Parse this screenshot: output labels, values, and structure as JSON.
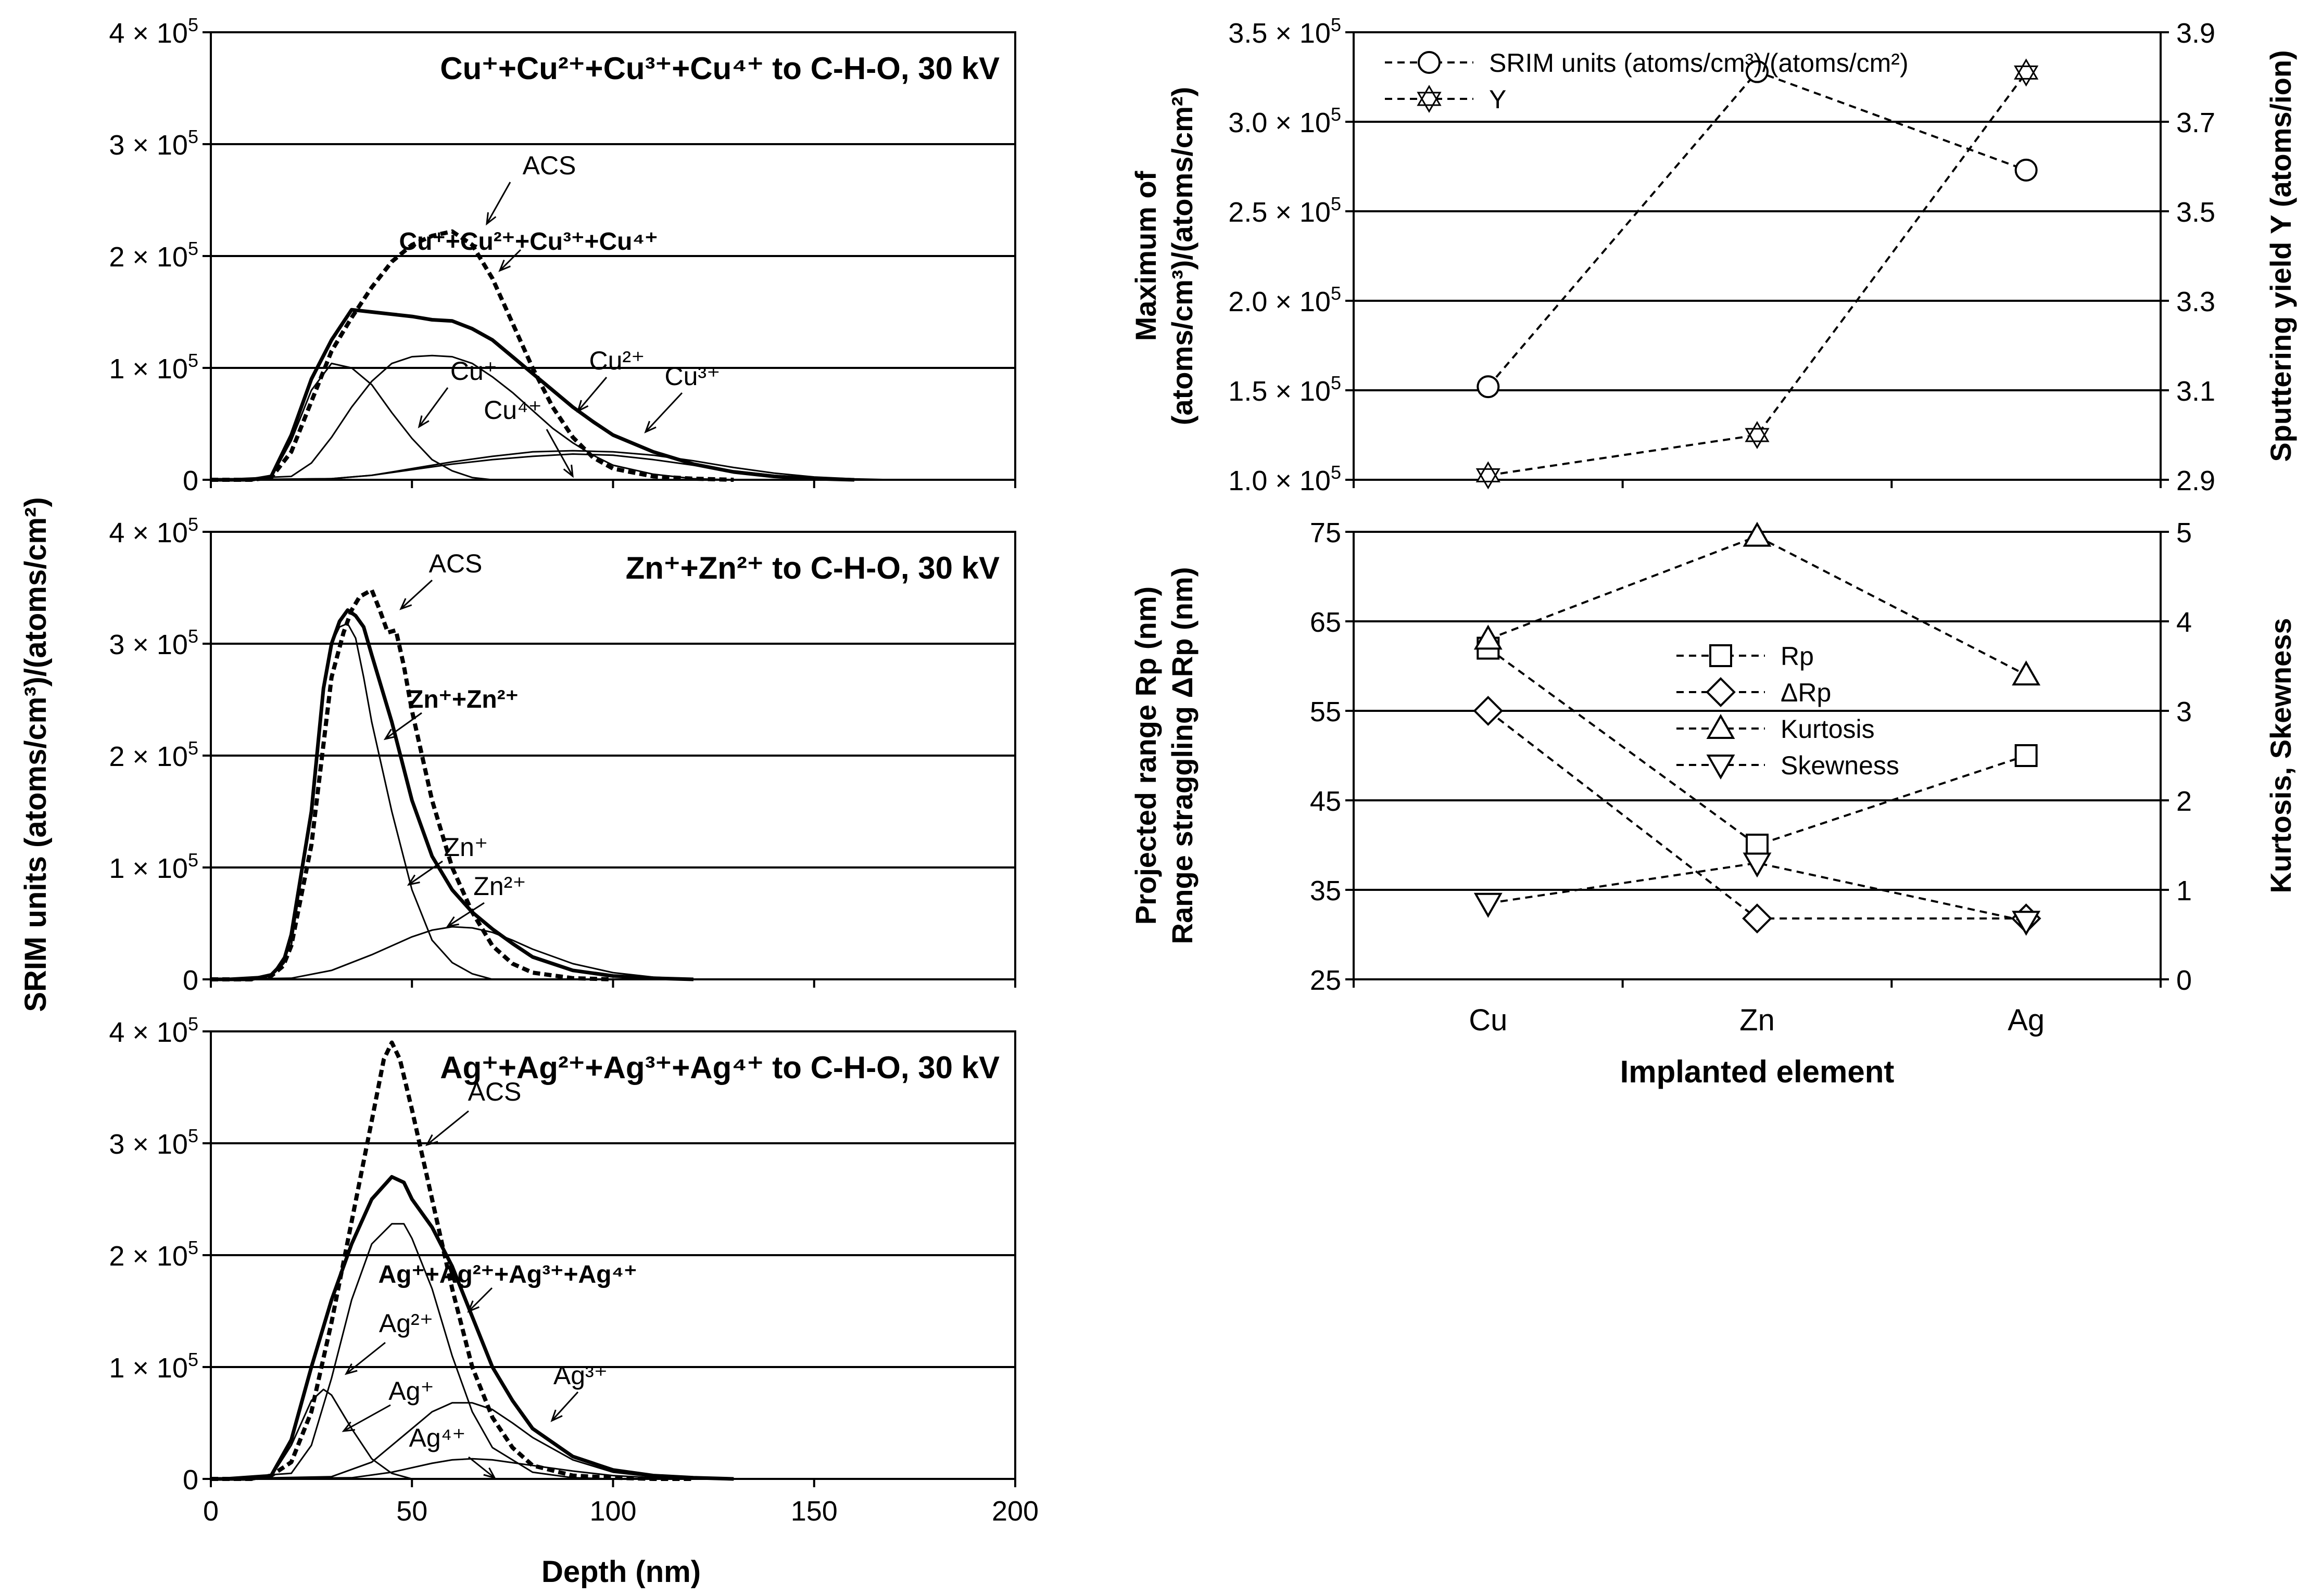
{
  "colors": {
    "ink": "#000000",
    "background": "#ffffff"
  },
  "shared": {
    "left_ylabel": "SRIM units (atoms/cm³)/(atoms/cm²)",
    "depth_xlabel": "Depth (nm)",
    "exponent_base": "× 10",
    "exponent": "5"
  },
  "chart_data": [
    {
      "id": "cu",
      "type": "line",
      "title": "Cu⁺+Cu²⁺+Cu³⁺+Cu⁴⁺ to C-H-O, 30 kV",
      "xlabel": "Depth (nm)",
      "ylabel": "SRIM units (atoms/cm³)/(atoms/cm²)",
      "xlim": [
        0,
        200
      ],
      "ylim": [
        0,
        400000
      ],
      "yticks": [
        0,
        100000,
        200000,
        300000,
        400000
      ],
      "ytick_labels": [
        "0",
        "1 × 10⁵",
        "2 × 10⁵",
        "3 × 10⁵",
        "4 × 10⁵"
      ],
      "grid": true,
      "series": [
        {
          "name": "ACS",
          "style": "dotted-bold",
          "x": [
            0,
            10,
            15,
            20,
            25,
            30,
            35,
            40,
            45,
            50,
            55,
            60,
            65,
            70,
            75,
            80,
            85,
            90,
            95,
            100,
            110,
            120,
            130
          ],
          "y": [
            0,
            0,
            2000,
            25000,
            70000,
            115000,
            145000,
            172000,
            195000,
            210000,
            218000,
            222000,
            210000,
            180000,
            140000,
            100000,
            65000,
            38000,
            20000,
            10000,
            3000,
            1000,
            0
          ]
        },
        {
          "name": "Cu⁺+Cu²⁺+Cu³⁺+Cu⁴⁺",
          "style": "bold",
          "x": [
            0,
            10,
            15,
            20,
            25,
            30,
            35,
            40,
            45,
            50,
            55,
            60,
            65,
            70,
            75,
            80,
            85,
            90,
            95,
            100,
            110,
            120,
            130,
            140,
            150,
            160
          ],
          "y": [
            0,
            0,
            3000,
            40000,
            90000,
            125000,
            152000,
            150000,
            148000,
            146000,
            143000,
            142000,
            135000,
            125000,
            110000,
            95000,
            80000,
            65000,
            52000,
            40000,
            25000,
            14000,
            7000,
            3000,
            1000,
            0
          ]
        },
        {
          "name": "Cu⁺",
          "style": "thin",
          "x": [
            0,
            15,
            20,
            25,
            30,
            35,
            40,
            45,
            50,
            55,
            60,
            65,
            70
          ],
          "y": [
            0,
            2000,
            35000,
            80000,
            104000,
            100000,
            85000,
            60000,
            37000,
            18000,
            8000,
            2000,
            0
          ]
        },
        {
          "name": "Cu²⁺",
          "style": "thin",
          "x": [
            0,
            20,
            25,
            30,
            35,
            40,
            45,
            50,
            55,
            60,
            65,
            70,
            75,
            80,
            85,
            90,
            95,
            100,
            110,
            120,
            130
          ],
          "y": [
            0,
            3000,
            15000,
            38000,
            65000,
            88000,
            104000,
            110000,
            111000,
            110000,
            104000,
            92000,
            78000,
            62000,
            46000,
            33000,
            22000,
            13000,
            5000,
            1000,
            0
          ]
        },
        {
          "name": "Cu³⁺",
          "style": "thin",
          "x": [
            0,
            30,
            40,
            50,
            60,
            70,
            80,
            90,
            100,
            110,
            120,
            130,
            140,
            150,
            160
          ],
          "y": [
            0,
            1000,
            4000,
            9000,
            14000,
            18000,
            21000,
            23000,
            22000,
            18000,
            13000,
            8000,
            4000,
            1500,
            0
          ]
        },
        {
          "name": "Cu⁴⁺",
          "style": "thin",
          "x": [
            0,
            30,
            40,
            50,
            60,
            70,
            80,
            90,
            100,
            110,
            120,
            130,
            140,
            150,
            160,
            170
          ],
          "y": [
            0,
            1000,
            4000,
            10000,
            16000,
            21000,
            25000,
            26000,
            25000,
            22000,
            17000,
            11000,
            6000,
            2500,
            800,
            0
          ]
        }
      ],
      "annotations": [
        "ACS",
        "Cu⁺+Cu²⁺+Cu³⁺+Cu⁴⁺",
        "Cu⁺",
        "Cu²⁺",
        "Cu³⁺",
        "Cu⁴⁺"
      ]
    },
    {
      "id": "zn",
      "type": "line",
      "title": "Zn⁺+Zn²⁺ to C-H-O, 30 kV",
      "xlabel": "Depth (nm)",
      "ylabel": "SRIM units (atoms/cm³)/(atoms/cm²)",
      "xlim": [
        0,
        200
      ],
      "ylim": [
        0,
        400000
      ],
      "yticks": [
        0,
        100000,
        200000,
        300000,
        400000
      ],
      "ytick_labels": [
        "0",
        "1 × 10⁵",
        "2 × 10⁵",
        "3 × 10⁵",
        "4 × 10⁵"
      ],
      "grid": true,
      "series": [
        {
          "name": "ACS",
          "style": "dotted-bold",
          "x": [
            0,
            10,
            15,
            18,
            20,
            25,
            28,
            30,
            33,
            35,
            37,
            40,
            42,
            44,
            46,
            48,
            50,
            55,
            60,
            65,
            70,
            75,
            80,
            90,
            100
          ],
          "y": [
            0,
            0,
            3000,
            12000,
            30000,
            120000,
            210000,
            270000,
            310000,
            330000,
            342000,
            348000,
            330000,
            310000,
            312000,
            280000,
            240000,
            160000,
            100000,
            60000,
            30000,
            14000,
            6000,
            1000,
            0
          ]
        },
        {
          "name": "Zn⁺+Zn²⁺",
          "style": "bold",
          "x": [
            0,
            10,
            15,
            18,
            20,
            25,
            28,
            30,
            32,
            34,
            36,
            38,
            40,
            45,
            50,
            55,
            60,
            65,
            70,
            75,
            80,
            90,
            100,
            110,
            120
          ],
          "y": [
            0,
            0,
            4000,
            15000,
            40000,
            150000,
            260000,
            300000,
            320000,
            330000,
            325000,
            315000,
            290000,
            230000,
            160000,
            110000,
            80000,
            60000,
            45000,
            32000,
            20000,
            8000,
            3000,
            1000,
            0
          ]
        },
        {
          "name": "Zn⁺",
          "style": "thin",
          "x": [
            0,
            15,
            20,
            25,
            28,
            30,
            32,
            34,
            36,
            38,
            40,
            45,
            50,
            55,
            60,
            65,
            70
          ],
          "y": [
            0,
            3000,
            30000,
            150000,
            260000,
            300000,
            315000,
            318000,
            305000,
            270000,
            230000,
            150000,
            80000,
            35000,
            15000,
            5000,
            0
          ]
        },
        {
          "name": "Zn²⁺",
          "style": "thin",
          "x": [
            0,
            20,
            30,
            40,
            50,
            55,
            60,
            65,
            70,
            75,
            80,
            90,
            100,
            110,
            120
          ],
          "y": [
            0,
            1000,
            8000,
            22000,
            38000,
            44000,
            47000,
            46000,
            42000,
            35000,
            27000,
            14000,
            6000,
            2000,
            0
          ]
        }
      ],
      "annotations": [
        "ACS",
        "Zn⁺+Zn²⁺",
        "Zn⁺",
        "Zn²⁺"
      ]
    },
    {
      "id": "ag",
      "type": "line",
      "title": "Ag⁺+Ag²⁺+Ag³⁺+Ag⁴⁺ to C-H-O, 30 kV",
      "xlabel": "Depth (nm)",
      "ylabel": "SRIM units (atoms/cm³)/(atoms/cm²)",
      "xlim": [
        0,
        200
      ],
      "ylim": [
        0,
        400000
      ],
      "yticks": [
        0,
        100000,
        200000,
        300000,
        400000
      ],
      "ytick_labels": [
        "0",
        "1 × 10⁵",
        "2 × 10⁵",
        "3 × 10⁵",
        "4 × 10⁵"
      ],
      "xticks": [
        0,
        50,
        100,
        150,
        200
      ],
      "grid": true,
      "series": [
        {
          "name": "ACS",
          "style": "dotted-bold",
          "x": [
            0,
            10,
            15,
            20,
            25,
            30,
            35,
            40,
            43,
            45,
            47,
            50,
            55,
            60,
            65,
            70,
            75,
            80,
            90,
            100,
            110,
            120
          ],
          "y": [
            0,
            0,
            3000,
            15000,
            60000,
            140000,
            230000,
            320000,
            375000,
            390000,
            375000,
            330000,
            250000,
            170000,
            100000,
            55000,
            28000,
            12000,
            3000,
            1000,
            0,
            0
          ]
        },
        {
          "name": "Ag⁺+Ag²⁺+Ag³⁺+Ag⁴⁺",
          "style": "bold",
          "x": [
            0,
            10,
            15,
            20,
            25,
            30,
            35,
            40,
            45,
            48,
            50,
            55,
            60,
            65,
            70,
            75,
            80,
            90,
            100,
            110,
            120,
            130
          ],
          "y": [
            0,
            0,
            3000,
            35000,
            100000,
            160000,
            210000,
            250000,
            270000,
            265000,
            250000,
            225000,
            190000,
            145000,
            100000,
            70000,
            45000,
            20000,
            8000,
            3000,
            1000,
            0
          ]
        },
        {
          "name": "Ag⁺",
          "style": "thin",
          "x": [
            0,
            15,
            20,
            25,
            28,
            30,
            35,
            40,
            45,
            50
          ],
          "y": [
            0,
            2000,
            30000,
            70000,
            80000,
            75000,
            45000,
            18000,
            5000,
            0
          ]
        },
        {
          "name": "Ag²⁺",
          "style": "thin",
          "x": [
            0,
            20,
            25,
            30,
            35,
            40,
            45,
            48,
            50,
            55,
            60,
            65,
            70,
            80,
            90,
            100
          ],
          "y": [
            0,
            5000,
            30000,
            90000,
            160000,
            210000,
            228000,
            228000,
            215000,
            170000,
            110000,
            60000,
            28000,
            6000,
            1000,
            0
          ]
        },
        {
          "name": "Ag³⁺",
          "style": "thin",
          "x": [
            0,
            30,
            40,
            50,
            55,
            60,
            65,
            70,
            75,
            80,
            90,
            100,
            110,
            120
          ],
          "y": [
            0,
            2000,
            15000,
            45000,
            60000,
            68000,
            68000,
            62000,
            50000,
            37000,
            17000,
            6000,
            2000,
            0
          ]
        },
        {
          "name": "Ag⁴⁺",
          "style": "thin",
          "x": [
            0,
            35,
            45,
            55,
            60,
            65,
            70,
            80,
            90,
            100,
            110,
            120
          ],
          "y": [
            0,
            1000,
            6000,
            14000,
            17000,
            18000,
            17000,
            12000,
            7000,
            3000,
            1000,
            0
          ]
        }
      ],
      "annotations": [
        "ACS",
        "Ag⁺+Ag²⁺+Ag³⁺+Ag⁴⁺",
        "Ag²⁺",
        "Ag⁺",
        "Ag⁴⁺",
        "Ag³⁺"
      ]
    },
    {
      "id": "max_sputter",
      "type": "line",
      "categories": [
        "Cu",
        "Zn",
        "Ag"
      ],
      "ylabel_left": [
        "Maximum of",
        "(atoms/cm³)/(atoms/cm²)"
      ],
      "ylabel_right": "Sputtering yield Y (atoms/ion)",
      "ylim_left": [
        100000,
        350000
      ],
      "yticks_left": [
        100000,
        150000,
        200000,
        250000,
        300000,
        350000
      ],
      "ytick_labels_left": [
        "1.0 × 10⁵",
        "1.5 × 10⁵",
        "2.0 × 10⁵",
        "2.5 × 10⁵",
        "3.0 × 10⁵",
        "3.5 × 10⁵"
      ],
      "ylim_right": [
        2.9,
        3.9
      ],
      "ytick_labels_right": [
        "2.9",
        "3.1",
        "3.3",
        "3.5",
        "3.7",
        "3.9"
      ],
      "grid": true,
      "series": [
        {
          "name": "SRIM units (atoms/cm³)/(atoms/cm²)",
          "axis": "left",
          "marker": "circle",
          "values": [
            152000,
            328000,
            273000
          ]
        },
        {
          "name": "Y",
          "axis": "right",
          "marker": "star",
          "values": [
            2.91,
            3.0,
            3.81
          ]
        }
      ]
    },
    {
      "id": "range_moments",
      "type": "line",
      "categories": [
        "Cu",
        "Zn",
        "Ag"
      ],
      "xlabel": "Implanted element",
      "ylabel_left": [
        "Projected range Rp (nm)",
        "Range straggling ΔRp (nm)"
      ],
      "ylabel_right": "Kurtosis, Skewness",
      "ylim_left": [
        25,
        75
      ],
      "ytick_labels_left": [
        "25",
        "35",
        "45",
        "55",
        "65",
        "75"
      ],
      "ylim_right": [
        0,
        5
      ],
      "ytick_labels_right": [
        "0",
        "1",
        "2",
        "3",
        "4",
        "5"
      ],
      "grid": true,
      "series": [
        {
          "name": "Rp",
          "axis": "left",
          "marker": "square",
          "values": [
            62,
            40,
            50
          ]
        },
        {
          "name": "ΔRp",
          "axis": "left",
          "marker": "diamond",
          "values": [
            55,
            31.8,
            31.8
          ]
        },
        {
          "name": "Kurtosis",
          "axis": "right",
          "marker": "triangle-up",
          "values": [
            3.8,
            4.95,
            3.4
          ]
        },
        {
          "name": "Skewness",
          "axis": "right",
          "marker": "triangle-down",
          "values": [
            0.85,
            1.3,
            0.65
          ]
        }
      ]
    }
  ]
}
